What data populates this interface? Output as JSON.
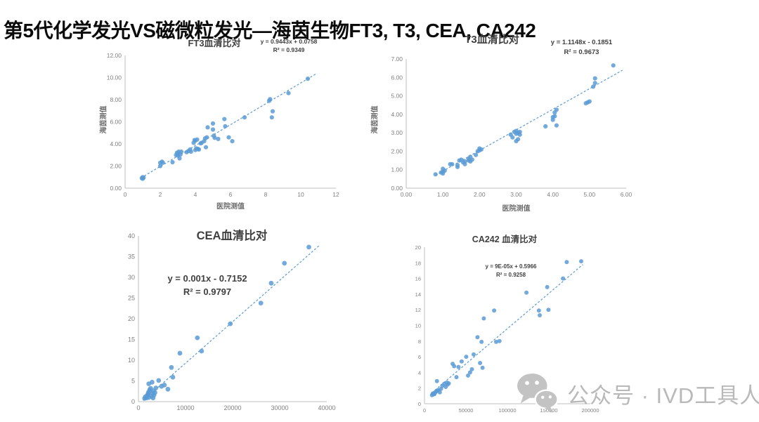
{
  "page": {
    "title": "第5代化学发光VS磁微粒发光—海茵生物FT3, T3, CEA, CA242"
  },
  "watermark": {
    "text": "公众号 · IVD工具人",
    "icon": "wechat-icon",
    "color": "#b9b9b9"
  },
  "colors": {
    "point": "#5B9BD5",
    "trendline": "#5B9BD5",
    "axis_line": "#BFBFBF",
    "tick_text": "#7F7F7F",
    "chart_title_text": "#404040"
  },
  "chart_data": [
    {
      "type": "scatter",
      "title": "FT3血清比对",
      "equation": "y = 0.9443x + 0.0758",
      "r_squared": "R² = 0.9349",
      "xlabel": "医院测值",
      "ylabel": "海茵测值",
      "xlim": [
        0,
        12
      ],
      "ylim": [
        0,
        12
      ],
      "xtick_step": 2,
      "ytick_step": 2,
      "xtick_decimals": 0,
      "ytick_decimals": 2,
      "grid": false,
      "legend": false,
      "trend": {
        "slope": 0.9443,
        "intercept": 0.0758,
        "x_range": [
          0.9,
          10.9
        ]
      },
      "points": [
        [
          0.95,
          0.9
        ],
        [
          1.0,
          1.0
        ],
        [
          1.0,
          0.85
        ],
        [
          1.05,
          0.95
        ],
        [
          2.0,
          2.0
        ],
        [
          2.0,
          2.3
        ],
        [
          2.1,
          2.4
        ],
        [
          2.15,
          2.3
        ],
        [
          2.7,
          2.35
        ],
        [
          2.9,
          3.0
        ],
        [
          2.95,
          3.2
        ],
        [
          3.0,
          3.1
        ],
        [
          3.0,
          2.95
        ],
        [
          3.05,
          3.3
        ],
        [
          3.1,
          2.7
        ],
        [
          3.15,
          3.05
        ],
        [
          3.2,
          3.3
        ],
        [
          3.5,
          3.25
        ],
        [
          3.6,
          3.35
        ],
        [
          3.7,
          3.5
        ],
        [
          3.75,
          3.3
        ],
        [
          3.9,
          4.1
        ],
        [
          3.95,
          4.35
        ],
        [
          4.0,
          3.45
        ],
        [
          4.0,
          4.3
        ],
        [
          4.05,
          3.6
        ],
        [
          4.1,
          4.4
        ],
        [
          4.15,
          3.55
        ],
        [
          4.2,
          3.5
        ],
        [
          4.3,
          4.05
        ],
        [
          4.35,
          4.1
        ],
        [
          4.5,
          4.25
        ],
        [
          4.55,
          4.5
        ],
        [
          4.6,
          3.7
        ],
        [
          4.65,
          4.6
        ],
        [
          4.7,
          5.5
        ],
        [
          5.0,
          5.85
        ],
        [
          5.0,
          5.3
        ],
        [
          5.05,
          4.75
        ],
        [
          5.1,
          4.55
        ],
        [
          5.3,
          4.45
        ],
        [
          5.65,
          6.25
        ],
        [
          5.7,
          5.6
        ],
        [
          5.9,
          4.6
        ],
        [
          6.1,
          4.25
        ],
        [
          6.8,
          6.4
        ],
        [
          8.2,
          7.9
        ],
        [
          8.25,
          8.05
        ],
        [
          8.4,
          6.95
        ],
        [
          8.35,
          6.4
        ],
        [
          9.3,
          8.6
        ],
        [
          10.4,
          9.9
        ]
      ]
    },
    {
      "type": "scatter",
      "title": "T3血清比对",
      "equation": "y = 1.1148x - 0.1851",
      "r_squared": "R² = 0.9673",
      "xlabel": "医院测值",
      "ylabel": "海茵测值",
      "xlim": [
        0,
        6
      ],
      "ylim": [
        0,
        7
      ],
      "xtick_step": 1,
      "ytick_step": 1,
      "xtick_decimals": 2,
      "ytick_decimals": 2,
      "grid": false,
      "legend": false,
      "trend": {
        "slope": 1.1148,
        "intercept": -0.1851,
        "x_range": [
          0.8,
          5.9
        ]
      },
      "points": [
        [
          0.8,
          0.75
        ],
        [
          0.95,
          0.85
        ],
        [
          1.0,
          0.8
        ],
        [
          1.0,
          0.9
        ],
        [
          1.05,
          0.95
        ],
        [
          1.0,
          1.05
        ],
        [
          1.2,
          1.3
        ],
        [
          1.25,
          1.3
        ],
        [
          1.4,
          1.15
        ],
        [
          1.4,
          1.25
        ],
        [
          1.45,
          1.5
        ],
        [
          1.5,
          1.55
        ],
        [
          1.55,
          1.4
        ],
        [
          1.6,
          1.3
        ],
        [
          1.6,
          1.45
        ],
        [
          1.7,
          1.5
        ],
        [
          1.7,
          1.6
        ],
        [
          1.75,
          1.45
        ],
        [
          1.75,
          1.7
        ],
        [
          1.8,
          1.55
        ],
        [
          1.9,
          1.8
        ],
        [
          1.95,
          2.0
        ],
        [
          2.0,
          2.05
        ],
        [
          2.0,
          2.15
        ],
        [
          2.05,
          2.1
        ],
        [
          2.85,
          2.9
        ],
        [
          2.9,
          2.75
        ],
        [
          2.95,
          3.05
        ],
        [
          3.0,
          3.1
        ],
        [
          3.0,
          2.95
        ],
        [
          3.0,
          2.55
        ],
        [
          3.05,
          3.0
        ],
        [
          3.05,
          2.65
        ],
        [
          3.1,
          2.9
        ],
        [
          3.1,
          3.05
        ],
        [
          3.8,
          3.35
        ],
        [
          4.0,
          3.7
        ],
        [
          4.0,
          3.85
        ],
        [
          4.05,
          4.1
        ],
        [
          4.05,
          3.9
        ],
        [
          4.1,
          4.25
        ],
        [
          4.1,
          3.4
        ],
        [
          4.9,
          4.6
        ],
        [
          4.95,
          4.65
        ],
        [
          5.0,
          4.7
        ],
        [
          5.1,
          5.5
        ],
        [
          5.15,
          5.7
        ],
        [
          5.15,
          5.95
        ],
        [
          5.65,
          6.65
        ]
      ]
    },
    {
      "type": "scatter",
      "title": "CEA血清比对",
      "equation": "y = 0.001x - 0.7152",
      "r_squared": "R² = 0.9797",
      "xlabel": "",
      "ylabel": "",
      "xlim": [
        0,
        40000
      ],
      "ylim": [
        0,
        40
      ],
      "xtick_step": 10000,
      "ytick_step": 5,
      "xtick_decimals": 0,
      "ytick_decimals": 0,
      "grid": false,
      "legend": false,
      "trend": {
        "slope": 0.001,
        "intercept": -0.7152,
        "x_range": [
          1000,
          38300
        ]
      },
      "points": [
        [
          1300,
          0.8
        ],
        [
          1500,
          1.2
        ],
        [
          1700,
          0.9
        ],
        [
          1900,
          1.5
        ],
        [
          2000,
          1.8
        ],
        [
          2100,
          2.2
        ],
        [
          2200,
          1.0
        ],
        [
          2300,
          2.5
        ],
        [
          2200,
          4.3
        ],
        [
          2900,
          4.7
        ],
        [
          2400,
          2.9
        ],
        [
          2600,
          3.2
        ],
        [
          2800,
          1.3
        ],
        [
          3000,
          2.0
        ],
        [
          3100,
          0.9
        ],
        [
          3200,
          2.6
        ],
        [
          3300,
          1.6
        ],
        [
          3500,
          2.2
        ],
        [
          3700,
          3.3
        ],
        [
          4300,
          5.1
        ],
        [
          4900,
          3.7
        ],
        [
          5500,
          4.0
        ],
        [
          6250,
          3.0
        ],
        [
          7000,
          8.25
        ],
        [
          7300,
          5.9
        ],
        [
          8800,
          11.7
        ],
        [
          12500,
          15.4
        ],
        [
          13400,
          12.2
        ],
        [
          19500,
          18.8
        ],
        [
          26000,
          23.8
        ],
        [
          28200,
          28.6
        ],
        [
          31000,
          33.4
        ],
        [
          36200,
          37.3
        ]
      ]
    },
    {
      "type": "scatter",
      "title": "CA242 血清比对",
      "equation": "y = 9E-05x + 0.5966",
      "r_squared": "R² = 0.9258",
      "xlabel": "",
      "ylabel": "",
      "xlim": [
        0,
        200000
      ],
      "ylim": [
        0,
        20
      ],
      "xtick_step": 50000,
      "ytick_step": 2,
      "xtick_decimals": 0,
      "ytick_decimals": 0,
      "grid": false,
      "legend": false,
      "trend": {
        "slope": 9e-05,
        "intercept": 0.5966,
        "x_range": [
          9000,
          191000
        ]
      },
      "points": [
        [
          9000,
          1.1
        ],
        [
          10000,
          1.3
        ],
        [
          11000,
          1.2
        ],
        [
          12000,
          1.25
        ],
        [
          13000,
          1.45
        ],
        [
          14000,
          1.55
        ],
        [
          15000,
          2.9
        ],
        [
          15500,
          1.7
        ],
        [
          17000,
          1.75
        ],
        [
          18500,
          1.45
        ],
        [
          20000,
          1.9
        ],
        [
          21500,
          2.3
        ],
        [
          23800,
          2.55
        ],
        [
          25600,
          2.15
        ],
        [
          27200,
          2.7
        ],
        [
          27800,
          2.45
        ],
        [
          29300,
          2.6
        ],
        [
          34000,
          5.1
        ],
        [
          35800,
          4.8
        ],
        [
          38600,
          3.4
        ],
        [
          41000,
          4.7
        ],
        [
          44800,
          5.4
        ],
        [
          50300,
          6.0
        ],
        [
          52500,
          3.6
        ],
        [
          55000,
          4.0
        ],
        [
          57200,
          4.4
        ],
        [
          59300,
          6.3
        ],
        [
          63900,
          8.5
        ],
        [
          67000,
          5.2
        ],
        [
          68800,
          7.9
        ],
        [
          70000,
          4.6
        ],
        [
          71500,
          10.9
        ],
        [
          84000,
          11.9
        ],
        [
          86400,
          7.9
        ],
        [
          90400,
          8.0
        ],
        [
          123000,
          14.2
        ],
        [
          138000,
          11.9
        ],
        [
          139000,
          11.3
        ],
        [
          148000,
          14.9
        ],
        [
          149500,
          12.0
        ],
        [
          167000,
          16.0
        ],
        [
          171500,
          18.1
        ],
        [
          189000,
          18.2
        ]
      ]
    }
  ]
}
